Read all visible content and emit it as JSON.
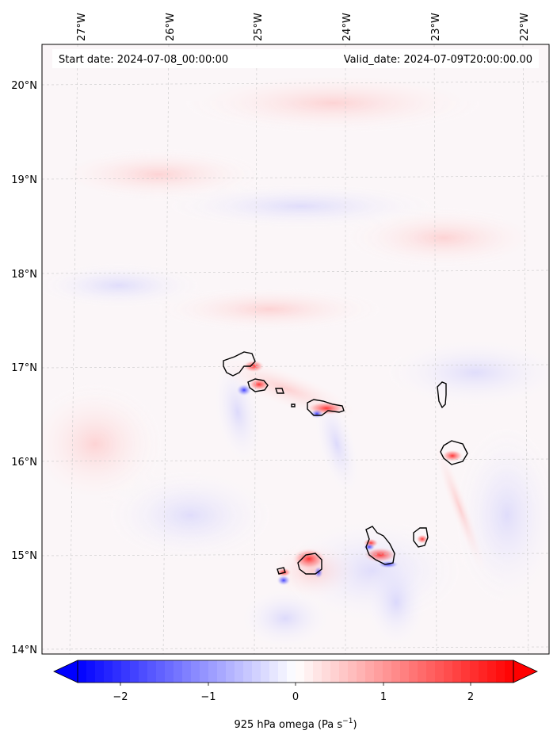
{
  "map": {
    "start_date": "Start date: 2024-07-08_00:00:00",
    "valid_date": "Valid_date: 2024-07-09T20:00:00.00",
    "lon_ticks": [
      "27°W",
      "26°W",
      "25°W",
      "24°W",
      "23°W",
      "22°W"
    ],
    "lat_ticks": [
      "20°N",
      "19°N",
      "18°N",
      "17°N",
      "16°N",
      "15°N",
      "14°N"
    ],
    "field": "925 hPa omega",
    "islands": [
      "Santo Antão",
      "São Vicente",
      "Santa Luzia",
      "São Nicolau",
      "Sal",
      "Boa Vista",
      "Santiago",
      "Fogo",
      "Brava",
      "Maio"
    ]
  },
  "colorbar": {
    "ticks": [
      "−2",
      "−1",
      "0",
      "1",
      "2"
    ],
    "label": "925 hPa omega (Pa s",
    "label_sup": "−1",
    "label_close": ")",
    "negative_color": "#0000ff",
    "zero_color": "#ffffff",
    "positive_color": "#ff0000"
  }
}
